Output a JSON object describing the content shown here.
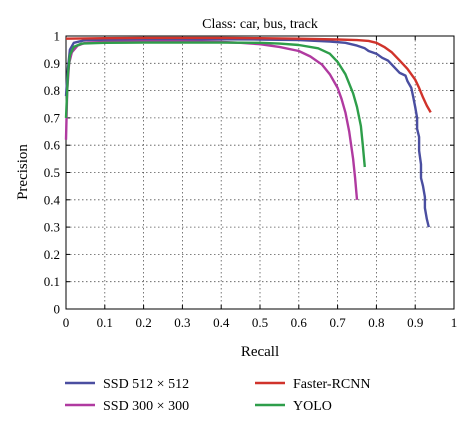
{
  "chart_data": {
    "type": "line",
    "title": "Class: car, bus, track",
    "xlabel": "Recall",
    "ylabel": "Precision",
    "xlim": [
      0,
      1
    ],
    "ylim": [
      0,
      1
    ],
    "xticks": [
      "0",
      "0.1",
      "0.2",
      "0.3",
      "0.4",
      "0.5",
      "0.6",
      "0.7",
      "0.8",
      "0.9",
      "1"
    ],
    "yticks": [
      "0",
      "0.1",
      "0.2",
      "0.3",
      "0.4",
      "0.5",
      "0.6",
      "0.7",
      "0.8",
      "0.9",
      "1"
    ],
    "grid": true,
    "legend_position": "below",
    "series": [
      {
        "name": "SSD 512 × 512",
        "color": "#4a4ea0",
        "points": [
          [
            0.0,
            0.78
          ],
          [
            0.005,
            0.88
          ],
          [
            0.01,
            0.95
          ],
          [
            0.02,
            0.975
          ],
          [
            0.05,
            0.985
          ],
          [
            0.1,
            0.985
          ],
          [
            0.2,
            0.987
          ],
          [
            0.3,
            0.988
          ],
          [
            0.4,
            0.988
          ],
          [
            0.5,
            0.987
          ],
          [
            0.6,
            0.985
          ],
          [
            0.68,
            0.98
          ],
          [
            0.72,
            0.975
          ],
          [
            0.75,
            0.965
          ],
          [
            0.77,
            0.955
          ],
          [
            0.78,
            0.945
          ],
          [
            0.8,
            0.935
          ],
          [
            0.815,
            0.92
          ],
          [
            0.83,
            0.91
          ],
          [
            0.84,
            0.895
          ],
          [
            0.85,
            0.88
          ],
          [
            0.86,
            0.865
          ],
          [
            0.875,
            0.855
          ],
          [
            0.88,
            0.835
          ],
          [
            0.89,
            0.81
          ],
          [
            0.895,
            0.775
          ],
          [
            0.9,
            0.74
          ],
          [
            0.905,
            0.7
          ],
          [
            0.905,
            0.66
          ],
          [
            0.91,
            0.63
          ],
          [
            0.91,
            0.58
          ],
          [
            0.915,
            0.53
          ],
          [
            0.915,
            0.48
          ],
          [
            0.92,
            0.45
          ],
          [
            0.925,
            0.41
          ],
          [
            0.925,
            0.37
          ],
          [
            0.93,
            0.33
          ],
          [
            0.935,
            0.3
          ]
        ]
      },
      {
        "name": "Faster-RCNN",
        "color": "#d0332b",
        "points": [
          [
            0.0,
            0.99
          ],
          [
            0.1,
            0.992
          ],
          [
            0.2,
            0.993
          ],
          [
            0.3,
            0.993
          ],
          [
            0.4,
            0.993
          ],
          [
            0.5,
            0.992
          ],
          [
            0.6,
            0.99
          ],
          [
            0.7,
            0.987
          ],
          [
            0.75,
            0.985
          ],
          [
            0.78,
            0.982
          ],
          [
            0.8,
            0.975
          ],
          [
            0.82,
            0.96
          ],
          [
            0.84,
            0.94
          ],
          [
            0.86,
            0.91
          ],
          [
            0.88,
            0.88
          ],
          [
            0.9,
            0.84
          ],
          [
            0.91,
            0.81
          ],
          [
            0.92,
            0.775
          ],
          [
            0.93,
            0.745
          ],
          [
            0.94,
            0.72
          ]
        ]
      },
      {
        "name": "SSD 300 × 300",
        "color": "#b03aa0",
        "points": [
          [
            0.0,
            0.62
          ],
          [
            0.003,
            0.8
          ],
          [
            0.008,
            0.9
          ],
          [
            0.015,
            0.94
          ],
          [
            0.03,
            0.965
          ],
          [
            0.05,
            0.975
          ],
          [
            0.1,
            0.978
          ],
          [
            0.2,
            0.98
          ],
          [
            0.3,
            0.98
          ],
          [
            0.4,
            0.978
          ],
          [
            0.45,
            0.975
          ],
          [
            0.5,
            0.97
          ],
          [
            0.55,
            0.96
          ],
          [
            0.6,
            0.945
          ],
          [
            0.63,
            0.925
          ],
          [
            0.66,
            0.895
          ],
          [
            0.68,
            0.86
          ],
          [
            0.7,
            0.81
          ],
          [
            0.71,
            0.77
          ],
          [
            0.72,
            0.72
          ],
          [
            0.73,
            0.65
          ],
          [
            0.74,
            0.55
          ],
          [
            0.745,
            0.48
          ],
          [
            0.75,
            0.4
          ]
        ]
      },
      {
        "name": "YOLO",
        "color": "#2e9e4a",
        "points": [
          [
            0.0,
            0.7
          ],
          [
            0.005,
            0.86
          ],
          [
            0.01,
            0.93
          ],
          [
            0.02,
            0.96
          ],
          [
            0.04,
            0.972
          ],
          [
            0.1,
            0.975
          ],
          [
            0.2,
            0.976
          ],
          [
            0.3,
            0.976
          ],
          [
            0.4,
            0.976
          ],
          [
            0.5,
            0.975
          ],
          [
            0.55,
            0.972
          ],
          [
            0.6,
            0.967
          ],
          [
            0.65,
            0.955
          ],
          [
            0.68,
            0.935
          ],
          [
            0.7,
            0.905
          ],
          [
            0.72,
            0.86
          ],
          [
            0.74,
            0.79
          ],
          [
            0.75,
            0.74
          ],
          [
            0.76,
            0.67
          ],
          [
            0.765,
            0.6
          ],
          [
            0.77,
            0.52
          ]
        ]
      }
    ]
  }
}
